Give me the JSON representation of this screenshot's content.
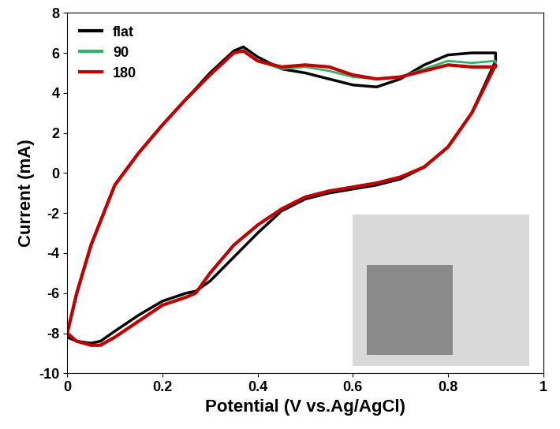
{
  "chart_data": {
    "type": "line",
    "x_label": "Potential (V vs.Ag/AgCl)",
    "y_label": "Current (mA)",
    "x": [
      0,
      0.02,
      0.05,
      0.1,
      0.15,
      0.2,
      0.25,
      0.3,
      0.35,
      0.37,
      0.4,
      0.45,
      0.5,
      0.55,
      0.6,
      0.65,
      0.7,
      0.75,
      0.8,
      0.85,
      0.9,
      0.9,
      0.85,
      0.8,
      0.75,
      0.7,
      0.65,
      0.6,
      0.55,
      0.5,
      0.45,
      0.4,
      0.35,
      0.3,
      0.27,
      0.25,
      0.2,
      0.15,
      0.1,
      0.07,
      0.05,
      0.02,
      0
    ],
    "series": [
      {
        "name": "flat",
        "color": "#000000",
        "values": [
          -8.0,
          -6.0,
          -3.6,
          -0.6,
          1.0,
          2.4,
          3.7,
          5.0,
          6.1,
          6.3,
          5.8,
          5.2,
          5.0,
          4.7,
          4.4,
          4.3,
          4.7,
          5.4,
          5.9,
          6.0,
          6.0,
          5.6,
          3.0,
          1.3,
          0.3,
          -0.3,
          -0.6,
          -0.8,
          -1.0,
          -1.3,
          -1.9,
          -3.0,
          -4.2,
          -5.4,
          -5.9,
          -6.0,
          -6.4,
          -7.1,
          -7.9,
          -8.4,
          -8.5,
          -8.4,
          -8.2
        ]
      },
      {
        "name": "90",
        "color": "#33b36b",
        "values": [
          -8.0,
          -6.0,
          -3.6,
          -0.6,
          1.0,
          2.4,
          3.7,
          4.9,
          6.0,
          6.1,
          5.6,
          5.2,
          5.3,
          5.1,
          4.8,
          4.7,
          4.8,
          5.2,
          5.6,
          5.5,
          5.6,
          5.4,
          3.0,
          1.3,
          0.3,
          -0.2,
          -0.5,
          -0.7,
          -0.9,
          -1.2,
          -1.8,
          -2.6,
          -3.6,
          -5.0,
          -6.0,
          -6.2,
          -6.6,
          -7.4,
          -8.2,
          -8.6,
          -8.6,
          -8.4,
          -8.0
        ]
      },
      {
        "name": "180",
        "color": "#c00000",
        "values": [
          -8.0,
          -6.0,
          -3.6,
          -0.6,
          1.0,
          2.4,
          3.7,
          4.9,
          6.0,
          6.1,
          5.6,
          5.3,
          5.4,
          5.3,
          4.9,
          4.7,
          4.8,
          5.1,
          5.4,
          5.3,
          5.3,
          5.4,
          3.0,
          1.3,
          0.3,
          -0.2,
          -0.5,
          -0.7,
          -0.9,
          -1.2,
          -1.8,
          -2.6,
          -3.6,
          -5.0,
          -6.0,
          -6.2,
          -6.6,
          -7.4,
          -8.2,
          -8.6,
          -8.6,
          -8.4,
          -8.0
        ]
      }
    ],
    "xlim": [
      0,
      1
    ],
    "xticks": [
      0,
      0.2,
      0.4,
      0.6,
      0.8,
      1
    ],
    "ylim": [
      -10,
      8
    ],
    "yticks": [
      -10,
      -8,
      -6,
      -4,
      -2,
      0,
      2,
      4,
      6,
      8
    ],
    "legend": "upper left"
  }
}
